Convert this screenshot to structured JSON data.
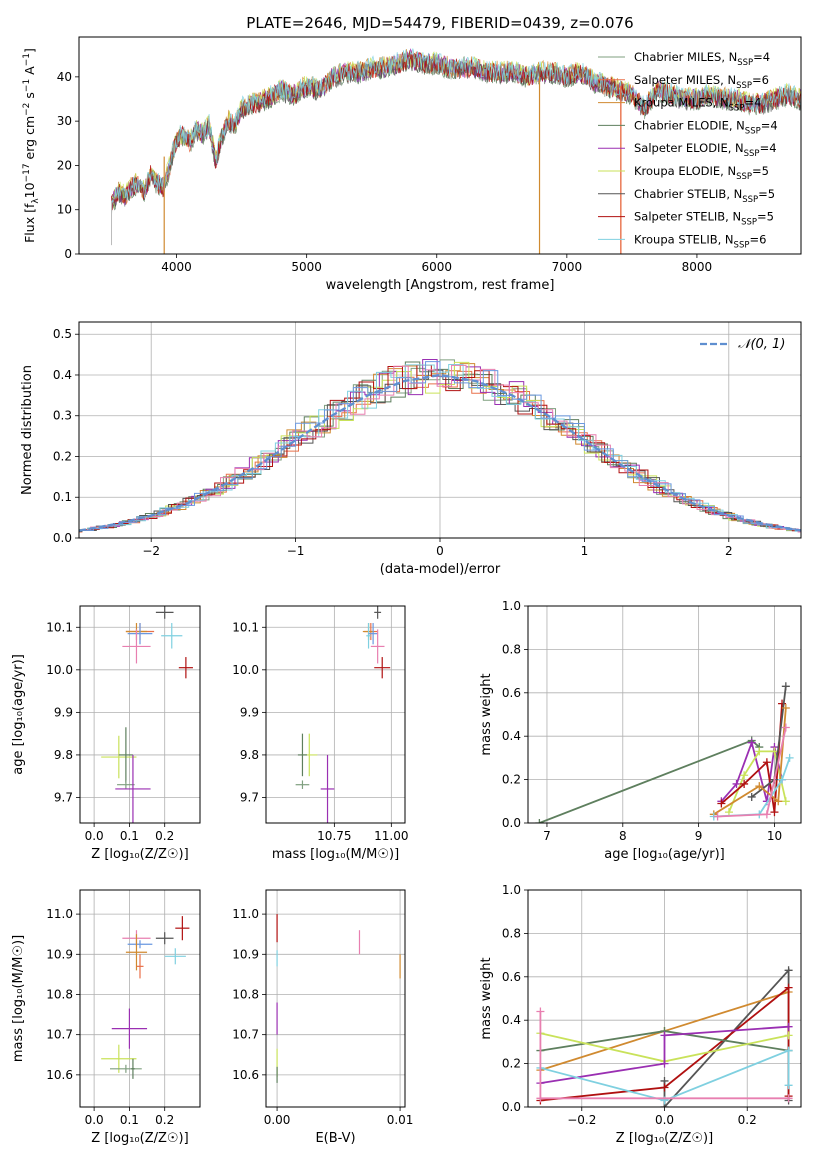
{
  "figure": {
    "title": "PLATE=2646, MJD=54479, FIBERID=0439, z=0.076"
  },
  "colors": {
    "chabrier_miles": "#7f9f7f",
    "salpeter_miles": "#e8704a",
    "kroupa_miles": "#d08a30",
    "chabrier_elodie": "#5e7f5e",
    "salpeter_elodie": "#9a2fb2",
    "kroupa_elodie": "#c9e25a",
    "chabrier_stelib": "#555555",
    "salpeter_stelib": "#b01010",
    "kroupa_stelib": "#7fd0e0",
    "pink": "#e87fb0",
    "blue": "#6a98e0",
    "normal": "#5f8fd0"
  },
  "chart_data": [
    {
      "id": "spectrum",
      "type": "line",
      "xlabel": "wavelength [Angstrom, rest frame]",
      "ylabel_main": "Flux [f",
      "ylabel_sub1": "λ",
      "ylabel_mid": "10",
      "ylabel_sup1": "−17",
      "ylabel_mid2": " erg cm",
      "ylabel_sup2": "−2",
      "ylabel_mid3": " s",
      "ylabel_sup3": "−1",
      "ylabel_mid4": " A",
      "ylabel_sup4": "−1",
      "ylabel_end": "]",
      "xlim": [
        3250,
        8800
      ],
      "ylim": [
        0,
        49
      ],
      "xticks": [
        4000,
        5000,
        6000,
        7000,
        8000
      ],
      "yticks": [
        0,
        10,
        20,
        30,
        40
      ],
      "grid": false,
      "legend_position": "top-right",
      "x": [
        3500,
        3550,
        3600,
        3650,
        3700,
        3750,
        3800,
        3850,
        3900,
        3950,
        4000,
        4050,
        4100,
        4150,
        4200,
        4250,
        4300,
        4350,
        4400,
        4450,
        4500,
        4600,
        4700,
        4800,
        4900,
        5000,
        5100,
        5200,
        5300,
        5400,
        5500,
        5600,
        5700,
        5800,
        5900,
        6000,
        6100,
        6200,
        6300,
        6400,
        6500,
        6600,
        6700,
        6800,
        6900,
        7000,
        7100,
        7200,
        7300,
        7400,
        7500,
        7600,
        7700,
        7800,
        7900,
        8000,
        8100,
        8200,
        8300,
        8400,
        8500,
        8600,
        8700,
        8800
      ],
      "y": [
        11,
        14,
        13,
        15,
        16,
        14,
        18,
        16,
        15,
        20,
        26,
        27,
        25,
        28,
        27,
        29,
        21,
        27,
        30,
        29,
        33,
        34,
        35,
        37,
        36,
        38,
        37,
        40,
        41,
        41,
        42,
        42,
        43,
        44,
        43,
        43,
        42,
        42,
        42,
        41,
        41,
        41,
        40,
        41,
        41,
        40,
        41,
        39,
        38,
        37,
        36,
        33,
        37,
        36,
        35,
        35,
        36,
        35,
        35,
        34,
        34,
        35,
        36,
        35
      ],
      "legend": [
        {
          "key": "chabrier_miles",
          "base": "Chabrier MILES, N",
          "sub": "SSP",
          "tail": "=4"
        },
        {
          "key": "salpeter_miles",
          "base": "Salpeter MILES, N",
          "sub": "SSP",
          "tail": "=6"
        },
        {
          "key": "kroupa_miles",
          "base": "Kroupa MILES, N",
          "sub": "SSP",
          "tail": "=4"
        },
        {
          "key": "chabrier_elodie",
          "base": "Chabrier ELODIE, N",
          "sub": "SSP",
          "tail": "=4"
        },
        {
          "key": "salpeter_elodie",
          "base": "Salpeter ELODIE, N",
          "sub": "SSP",
          "tail": "=4"
        },
        {
          "key": "kroupa_elodie",
          "base": "Kroupa ELODIE, N",
          "sub": "SSP",
          "tail": "=5"
        },
        {
          "key": "chabrier_stelib",
          "base": "Chabrier STELIB, N",
          "sub": "SSP",
          "tail": "=5"
        },
        {
          "key": "salpeter_stelib",
          "base": "Salpeter STELIB, N",
          "sub": "SSP",
          "tail": "=5"
        },
        {
          "key": "kroupa_stelib",
          "base": "Kroupa STELIB, N",
          "sub": "SSP",
          "tail": "=6"
        }
      ]
    },
    {
      "id": "residuals",
      "type": "histogram",
      "xlabel": "(data-model)/error",
      "ylabel": "Normed distribution",
      "xlim": [
        -2.5,
        2.5
      ],
      "ylim": [
        0,
        0.53
      ],
      "xticks": [
        -2,
        -1,
        0,
        1,
        2
      ],
      "xticklabels": [
        "−2",
        "−1",
        "0",
        "1",
        "2"
      ],
      "yticks": [
        0,
        0.1,
        0.2,
        0.3,
        0.4,
        0.5
      ],
      "yticklabels": [
        "0.0",
        "0.1",
        "0.2",
        "0.3",
        "0.4",
        "0.5"
      ],
      "grid": true,
      "legend_label": "𝒩(0, 1)",
      "legend_position": "top-right",
      "bin_width": 0.1,
      "x": [
        -2.5,
        -2.25,
        -2.0,
        -1.75,
        -1.5,
        -1.25,
        -1.0,
        -0.75,
        -0.5,
        -0.25,
        0.0,
        0.25,
        0.5,
        0.75,
        1.0,
        1.25,
        1.5,
        1.75,
        2.0,
        2.25,
        2.5
      ],
      "y": [
        0.018,
        0.034,
        0.055,
        0.085,
        0.13,
        0.18,
        0.24,
        0.3,
        0.35,
        0.385,
        0.4,
        0.385,
        0.35,
        0.3,
        0.24,
        0.18,
        0.13,
        0.085,
        0.055,
        0.034,
        0.018
      ]
    },
    {
      "id": "age_vs_Z",
      "type": "scatter",
      "xlabel": "Z [log₁₀(Z/Z☉)]",
      "ylabel": "age  [log₁₀(age/yr)]",
      "xlim": [
        -0.04,
        0.3
      ],
      "ylim": [
        9.64,
        10.15
      ],
      "xticks": [
        0.0,
        0.1,
        0.2
      ],
      "xticklabels": [
        "0.0",
        "0.1",
        "0.2"
      ],
      "yticks": [
        9.7,
        9.8,
        9.9,
        10.0,
        10.1
      ],
      "yticklabels": [
        "9.7",
        "9.8",
        "9.9",
        "10.0",
        "10.1"
      ],
      "grid": true,
      "points": [
        {
          "key": "chabrier_stelib",
          "x": 0.2,
          "y": 10.135,
          "ex": 0.05,
          "ey": 0.03
        },
        {
          "key": "salpeter_miles",
          "x": 0.13,
          "y": 10.09,
          "ex": 0.08,
          "ey": 0.04
        },
        {
          "key": "kroupa_miles",
          "x": 0.12,
          "y": 10.09,
          "ex": 0.06,
          "ey": 0.04
        },
        {
          "key": "kroupa_stelib",
          "x": 0.22,
          "y": 10.08,
          "ex": 0.06,
          "ey": 0.06
        },
        {
          "key": "blue",
          "x": 0.13,
          "y": 10.085,
          "ex": 0.07,
          "ey": 0.05
        },
        {
          "key": "pink",
          "x": 0.12,
          "y": 10.055,
          "ex": 0.08,
          "ey": 0.08
        },
        {
          "key": "salpeter_stelib",
          "x": 0.26,
          "y": 10.005,
          "ex": 0.04,
          "ey": 0.05
        },
        {
          "key": "kroupa_elodie",
          "x": 0.07,
          "y": 9.795,
          "ex": 0.1,
          "ey": 0.1
        },
        {
          "key": "chabrier_elodie",
          "x": 0.09,
          "y": 9.8,
          "ex": 0.04,
          "ey": 0.13
        },
        {
          "key": "chabrier_miles",
          "x": 0.09,
          "y": 9.73,
          "ex": 0.05,
          "ey": 0.02
        },
        {
          "key": "salpeter_elodie",
          "x": 0.11,
          "y": 9.72,
          "ex": 0.1,
          "ey": 0.16
        }
      ]
    },
    {
      "id": "age_vs_mass",
      "type": "scatter",
      "xlabel": "mass [log₁₀(M/M☉)]",
      "ylabel": "",
      "xlim": [
        10.45,
        11.06
      ],
      "ylim": [
        9.64,
        10.15
      ],
      "xticks": [
        10.75,
        11.0
      ],
      "xticklabels": [
        "10.75",
        "11.00"
      ],
      "yticks": [
        9.7,
        9.8,
        9.9,
        10.0,
        10.1
      ],
      "yticklabels": [
        "9.7",
        "9.8",
        "9.9",
        "10.0",
        "10.1"
      ],
      "grid": true,
      "points": [
        {
          "key": "chabrier_stelib",
          "x": 10.94,
          "y": 10.135,
          "ex": 0.03,
          "ey": 0.03
        },
        {
          "key": "salpeter_miles",
          "x": 10.91,
          "y": 10.09,
          "ex": 0.06,
          "ey": 0.04
        },
        {
          "key": "kroupa_miles",
          "x": 10.9,
          "y": 10.09,
          "ex": 0.05,
          "ey": 0.04
        },
        {
          "key": "kroupa_stelib",
          "x": 10.9,
          "y": 10.08,
          "ex": 0.02,
          "ey": 0.06
        },
        {
          "key": "blue",
          "x": 10.92,
          "y": 10.085,
          "ex": 0.04,
          "ey": 0.05
        },
        {
          "key": "pink",
          "x": 10.94,
          "y": 10.055,
          "ex": 0.06,
          "ey": 0.08
        },
        {
          "key": "salpeter_stelib",
          "x": 10.96,
          "y": 10.005,
          "ex": 0.07,
          "ey": 0.05
        },
        {
          "key": "kroupa_elodie",
          "x": 10.64,
          "y": 9.8,
          "ex": 0.07,
          "ey": 0.1
        },
        {
          "key": "chabrier_elodie",
          "x": 10.61,
          "y": 9.8,
          "ex": 0.04,
          "ey": 0.1
        },
        {
          "key": "chabrier_miles",
          "x": 10.61,
          "y": 9.73,
          "ex": 0.06,
          "ey": 0.02
        },
        {
          "key": "salpeter_elodie",
          "x": 10.72,
          "y": 9.72,
          "ex": 0.06,
          "ey": 0.16
        }
      ]
    },
    {
      "id": "weight_vs_age",
      "type": "line",
      "xlabel": "age  [log₁₀(age/yr)]",
      "ylabel": "mass weight",
      "xlim": [
        6.75,
        10.35
      ],
      "ylim": [
        0,
        1
      ],
      "xticks": [
        7,
        8,
        9,
        10
      ],
      "xticklabels": [
        "7",
        "8",
        "9",
        "10"
      ],
      "yticks": [
        0,
        0.2,
        0.4,
        0.6,
        0.8,
        1.0
      ],
      "yticklabels": [
        "0.0",
        "0.2",
        "0.4",
        "0.6",
        "0.8",
        "1.0"
      ],
      "grid": true,
      "series": [
        {
          "key": "chabrier_elodie",
          "x": [
            6.9,
            9.7,
            9.8
          ],
          "y": [
            0.0,
            0.38,
            0.35
          ]
        },
        {
          "key": "salpeter_elodie",
          "x": [
            9.3,
            9.5,
            9.7,
            9.9,
            10.0,
            10.1
          ],
          "y": [
            0.1,
            0.18,
            0.37,
            0.1,
            0.35,
            0.2
          ]
        },
        {
          "key": "kroupa_elodie",
          "x": [
            9.4,
            9.6,
            9.8,
            10.0,
            10.15
          ],
          "y": [
            0.05,
            0.22,
            0.33,
            0.33,
            0.1
          ]
        },
        {
          "key": "salpeter_stelib",
          "x": [
            9.3,
            9.6,
            9.9,
            10.0,
            10.1
          ],
          "y": [
            0.09,
            0.18,
            0.28,
            0.05,
            0.55
          ]
        },
        {
          "key": "chabrier_stelib",
          "x": [
            9.7,
            10.0,
            10.15
          ],
          "y": [
            0.12,
            0.2,
            0.63
          ]
        },
        {
          "key": "kroupa_miles",
          "x": [
            9.2,
            9.8,
            10.05,
            10.15
          ],
          "y": [
            0.04,
            0.17,
            0.1,
            0.53
          ]
        },
        {
          "key": "kroupa_stelib",
          "x": [
            9.2,
            9.8,
            10.1,
            10.2
          ],
          "y": [
            0.03,
            0.04,
            0.2,
            0.3
          ]
        },
        {
          "key": "pink",
          "x": [
            9.25,
            9.9,
            10.15
          ],
          "y": [
            0.03,
            0.04,
            0.44
          ]
        }
      ]
    },
    {
      "id": "mass_vs_Z",
      "type": "scatter",
      "xlabel": "Z [log₁₀(Z/Z☉)]",
      "ylabel": "mass [log₁₀(M/M☉)]",
      "xlim": [
        -0.04,
        0.3
      ],
      "ylim": [
        10.52,
        11.06
      ],
      "xticks": [
        0.0,
        0.1,
        0.2
      ],
      "xticklabels": [
        "0.0",
        "0.1",
        "0.2"
      ],
      "yticks": [
        10.6,
        10.7,
        10.8,
        10.9,
        11.0
      ],
      "yticklabels": [
        "10.6",
        "10.7",
        "10.8",
        "10.9",
        "11.0"
      ],
      "grid": true,
      "points": [
        {
          "key": "salpeter_stelib",
          "x": 0.25,
          "y": 10.965,
          "ex": 0.04,
          "ey": 0.06
        },
        {
          "key": "chabrier_stelib",
          "x": 0.2,
          "y": 10.94,
          "ex": 0.05,
          "ey": 0.03
        },
        {
          "key": "pink",
          "x": 0.12,
          "y": 10.94,
          "ex": 0.08,
          "ey": 0.04
        },
        {
          "key": "blue",
          "x": 0.13,
          "y": 10.925,
          "ex": 0.07,
          "ey": 0.02
        },
        {
          "key": "kroupa_miles",
          "x": 0.12,
          "y": 10.905,
          "ex": 0.06,
          "ey": 0.09
        },
        {
          "key": "kroupa_stelib",
          "x": 0.23,
          "y": 10.895,
          "ex": 0.06,
          "ey": 0.04
        },
        {
          "key": "salpeter_miles",
          "x": 0.13,
          "y": 10.87,
          "ex": 0.02,
          "ey": 0.06
        },
        {
          "key": "salpeter_elodie",
          "x": 0.1,
          "y": 10.715,
          "ex": 0.1,
          "ey": 0.1
        },
        {
          "key": "kroupa_elodie",
          "x": 0.07,
          "y": 10.64,
          "ex": 0.1,
          "ey": 0.07
        },
        {
          "key": "chabrier_miles",
          "x": 0.09,
          "y": 10.615,
          "ex": 0.09,
          "ey": 0.02
        },
        {
          "key": "chabrier_elodie",
          "x": 0.11,
          "y": 10.615,
          "ex": 0.01,
          "ey": 0.05
        }
      ]
    },
    {
      "id": "mass_vs_ebv",
      "type": "scatter",
      "xlabel": "E(B-V)",
      "ylabel": "",
      "xlim": [
        -0.0009,
        0.0104
      ],
      "ylim": [
        10.52,
        11.06
      ],
      "xticks": [
        0.0,
        0.01
      ],
      "xticklabels": [
        "0.00",
        "0.01"
      ],
      "yticks": [
        10.6,
        10.7,
        10.8,
        10.9,
        11.0
      ],
      "yticklabels": [
        "10.6",
        "10.7",
        "10.8",
        "10.9",
        "11.0"
      ],
      "grid": true,
      "points": [
        {
          "key": "salpeter_stelib",
          "x": 0.0,
          "y": 10.965,
          "ex": 0.0,
          "ey": 0.07
        },
        {
          "key": "pink",
          "x": 0.0067,
          "y": 10.93,
          "ex": 0.0,
          "ey": 0.06
        },
        {
          "key": "kroupa_miles",
          "x": 0.01,
          "y": 10.87,
          "ex": 0.0,
          "ey": 0.06
        },
        {
          "key": "kroupa_stelib",
          "x": 0.0,
          "y": 10.89,
          "ex": 0.0,
          "ey": 0.04
        },
        {
          "key": "salpeter_elodie",
          "x": 0.0,
          "y": 10.74,
          "ex": 0.0,
          "ey": 0.08
        },
        {
          "key": "kroupa_elodie",
          "x": 0.0,
          "y": 10.63,
          "ex": 0.0,
          "ey": 0.07
        },
        {
          "key": "chabrier_elodie",
          "x": 0.0,
          "y": 10.6,
          "ex": 0.0,
          "ey": 0.04
        }
      ]
    },
    {
      "id": "weight_vs_Z",
      "type": "line",
      "xlabel": "Z [log₁₀(Z/Z☉)]",
      "ylabel": "mass weight",
      "xlim": [
        -0.33,
        0.33
      ],
      "ylim": [
        0,
        1
      ],
      "xticks": [
        -0.2,
        0.0,
        0.2
      ],
      "xticklabels": [
        "−0.2",
        "0.0",
        "0.2"
      ],
      "yticks": [
        0,
        0.2,
        0.4,
        0.6,
        0.8,
        1.0
      ],
      "yticklabels": [
        "0.0",
        "0.2",
        "0.4",
        "0.6",
        "0.8",
        "1.0"
      ],
      "grid": true,
      "series": [
        {
          "key": "chabrier_stelib",
          "x": [
            0.0,
            0.0,
            0.3,
            0.3
          ],
          "y": [
            0.12,
            0.0,
            0.63,
            0.03
          ]
        },
        {
          "key": "kroupa_miles",
          "x": [
            -0.3,
            0.0,
            0.3
          ],
          "y": [
            0.17,
            0.35,
            0.53
          ]
        },
        {
          "key": "salpeter_stelib",
          "x": [
            -0.3,
            0.0,
            0.3,
            0.3
          ],
          "y": [
            0.03,
            0.09,
            0.55,
            0.05
          ]
        },
        {
          "key": "chabrier_elodie",
          "x": [
            -0.3,
            0.0,
            0.3
          ],
          "y": [
            0.26,
            0.35,
            0.26
          ]
        },
        {
          "key": "kroupa_elodie",
          "x": [
            -0.3,
            0.0,
            0.3
          ],
          "y": [
            0.34,
            0.21,
            0.33
          ]
        },
        {
          "key": "salpeter_elodie",
          "x": [
            -0.3,
            0.0,
            0.0,
            0.3
          ],
          "y": [
            0.11,
            0.2,
            0.33,
            0.37
          ]
        },
        {
          "key": "kroupa_stelib",
          "x": [
            -0.3,
            0.0,
            0.3,
            0.3
          ],
          "y": [
            0.18,
            0.03,
            0.26,
            0.1
          ]
        },
        {
          "key": "pink",
          "x": [
            -0.3,
            -0.3,
            0.3
          ],
          "y": [
            0.44,
            0.04,
            0.04
          ]
        }
      ]
    }
  ]
}
